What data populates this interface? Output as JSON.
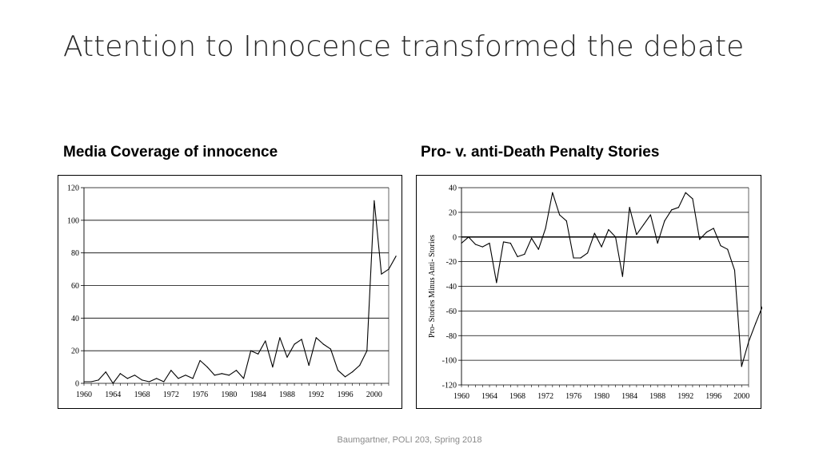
{
  "slide": {
    "title": "Attention to Innocence transformed the debate",
    "footer": "Baumgartner, POLI 203, Spring 2018"
  },
  "colors": {
    "title": "#262626",
    "line": "#000000",
    "footer": "#8a8a8a"
  },
  "chart_data": [
    {
      "type": "line",
      "title": "Media Coverage of innocence",
      "ylabel": "",
      "xlabel": "",
      "xlim": [
        1960,
        2002
      ],
      "ylim": [
        0,
        120
      ],
      "yticks": [
        0,
        20,
        40,
        60,
        80,
        100,
        120
      ],
      "xticks": [
        1960,
        1964,
        1968,
        1972,
        1976,
        1980,
        1984,
        1988,
        1992,
        1996,
        2000
      ],
      "grid": "horizontal",
      "x": [
        1960,
        1961,
        1962,
        1963,
        1964,
        1965,
        1966,
        1967,
        1968,
        1969,
        1970,
        1971,
        1972,
        1973,
        1974,
        1975,
        1976,
        1977,
        1978,
        1979,
        1980,
        1981,
        1982,
        1983,
        1984,
        1985,
        1986,
        1987,
        1988,
        1989,
        1990,
        1991,
        1992,
        1993,
        1994,
        1995,
        1996,
        1997,
        1998,
        1999,
        2000,
        2001,
        2002,
        2003
      ],
      "series": [
        {
          "values": [
            1,
            1,
            2,
            7,
            0,
            6,
            3,
            5,
            2,
            1,
            3,
            1,
            8,
            3,
            5,
            3,
            14,
            10,
            5,
            6,
            5,
            8,
            3,
            20,
            18,
            26,
            10,
            28,
            16,
            24,
            27,
            11,
            28,
            24,
            21,
            8,
            4,
            7,
            11,
            20,
            112,
            67,
            70,
            78
          ]
        }
      ]
    },
    {
      "type": "line",
      "title": "Pro- v. anti-Death Penalty Stories",
      "ylabel": "Pro- Stories Minus Anti- Stories",
      "xlabel": "",
      "xlim": [
        1960,
        2001
      ],
      "ylim": [
        -120,
        40
      ],
      "yticks": [
        -120,
        -100,
        -80,
        -60,
        -40,
        -20,
        0,
        20,
        40
      ],
      "xticks": [
        1960,
        1964,
        1968,
        1972,
        1976,
        1980,
        1984,
        1988,
        1992,
        1996,
        2000
      ],
      "grid": "horizontal",
      "x": [
        1960,
        1961,
        1962,
        1963,
        1964,
        1965,
        1966,
        1967,
        1968,
        1969,
        1970,
        1971,
        1972,
        1973,
        1974,
        1975,
        1976,
        1977,
        1978,
        1979,
        1980,
        1981,
        1982,
        1983,
        1984,
        1985,
        1986,
        1987,
        1988,
        1989,
        1990,
        1991,
        1992,
        1993,
        1994,
        1995,
        1996,
        1997,
        1998,
        1999,
        2000,
        2001,
        2002,
        2003
      ],
      "series": [
        {
          "values": [
            -5,
            0,
            -6,
            -8,
            -5,
            -37,
            -4,
            -5,
            -16,
            -14,
            -1,
            -10,
            7,
            36,
            18,
            13,
            -17,
            -17,
            -13,
            3,
            -8,
            6,
            0,
            -32,
            24,
            2,
            10,
            18,
            -5,
            13,
            22,
            24,
            36,
            31,
            -2,
            4,
            7,
            -7,
            -10,
            -27,
            -105,
            -85,
            -70,
            -56
          ]
        }
      ]
    }
  ]
}
